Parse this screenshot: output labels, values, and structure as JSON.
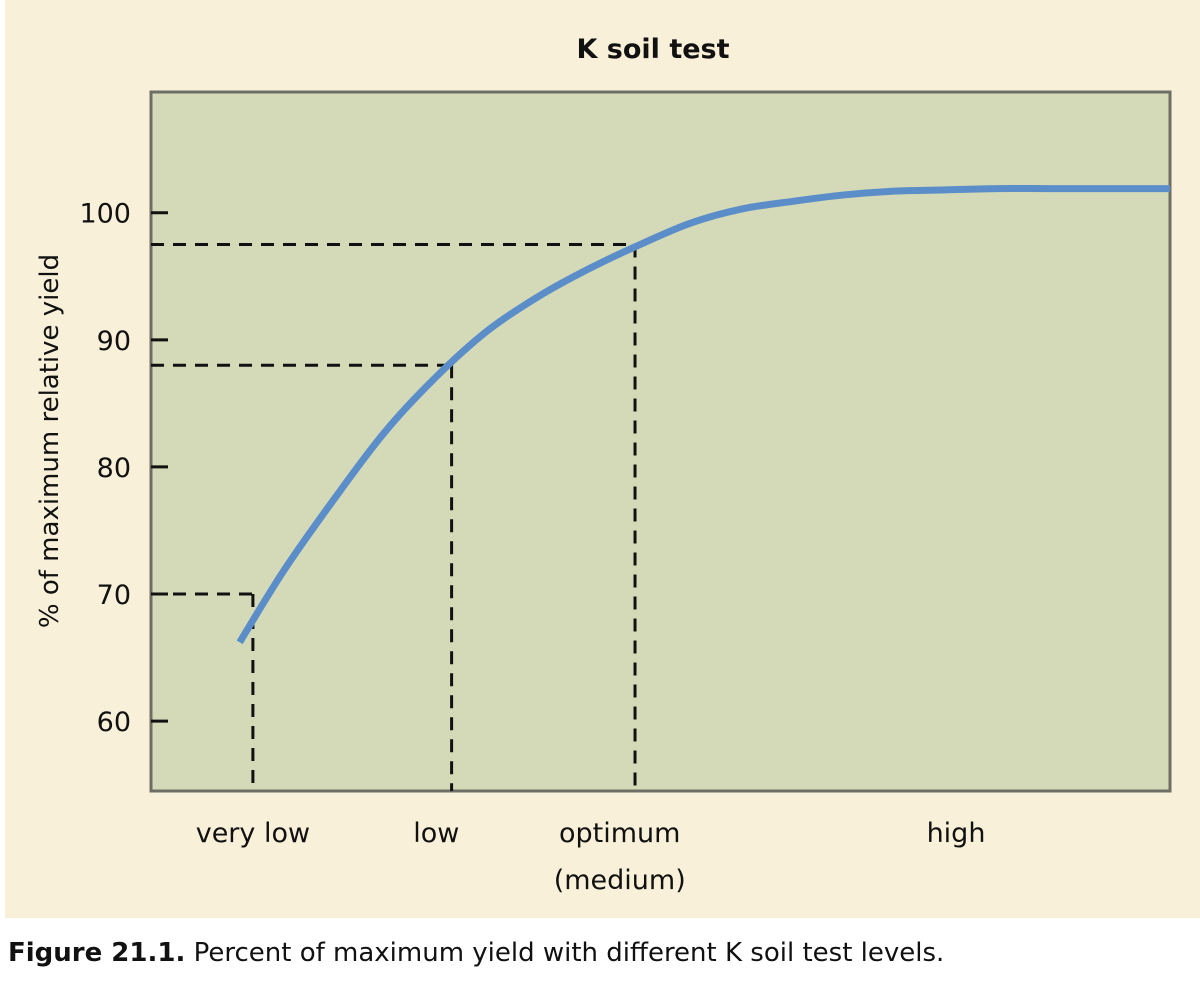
{
  "chart_data": {
    "type": "line",
    "title": "K soil test",
    "xlabel": "",
    "ylabel": "% of maximum relative yield",
    "ylim": [
      54.5,
      109.5
    ],
    "xlim": [
      0,
      100
    ],
    "yticks": [
      60,
      70,
      80,
      90,
      100
    ],
    "categories": [
      {
        "label": "very low",
        "label2": "",
        "x": 10
      },
      {
        "label": "low",
        "label2": "",
        "x": 28
      },
      {
        "label": "optimum",
        "label2": "(medium)",
        "x": 46
      },
      {
        "label": "high",
        "label2": "",
        "x": 79
      }
    ],
    "series": [
      {
        "color": "#5b8ec9",
        "x": [
          8.7,
          13,
          18,
          23,
          28,
          33,
          38,
          43,
          48,
          53,
          58,
          63,
          68,
          73,
          78,
          83,
          88,
          93,
          100
        ],
        "y": [
          66.2,
          71.8,
          77.5,
          82.8,
          87.1,
          90.7,
          93.4,
          95.6,
          97.5,
          99.2,
          100.3,
          100.9,
          101.4,
          101.7,
          101.8,
          101.9,
          101.9,
          101.9,
          101.9
        ]
      }
    ],
    "reference_lines": [
      {
        "x": 10,
        "y": 70
      },
      {
        "x": 29.5,
        "y": 88
      },
      {
        "x": 47.5,
        "y": 97.5
      }
    ],
    "plot_background": "#d4dab8",
    "border_color": "#6e6e66",
    "grid": false
  },
  "caption": {
    "label": "Figure 21.1.",
    "text": " Percent of maximum yield with different K soil test levels."
  }
}
